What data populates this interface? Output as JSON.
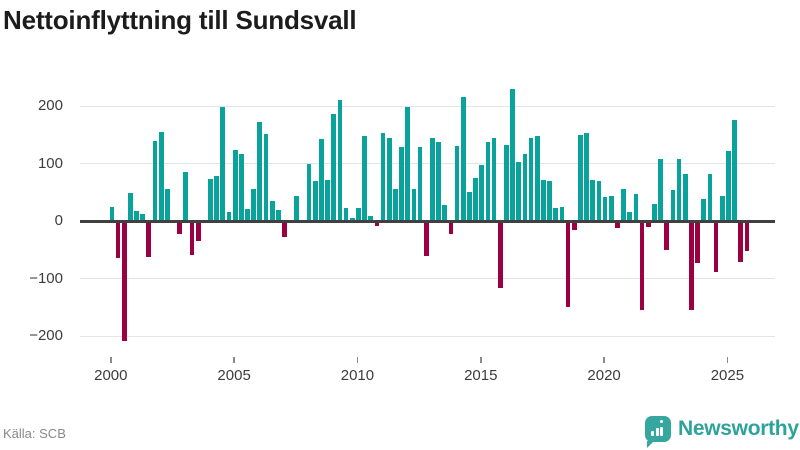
{
  "title": "Nettoinflyttning till Sundsvall",
  "source": "Källa: SCB",
  "branding": {
    "name": "Newsworthy"
  },
  "colors": {
    "positive_bar": "#0aa39b",
    "negative_bar": "#9b0141",
    "zero_axis": "#404040",
    "gridline": "#e4e4e4",
    "tick_label": "#3d3d3d",
    "source_text": "#8a8a8a",
    "title_text": "#1c1c1c",
    "brand_teal": "#2da39c"
  },
  "chart_data": {
    "type": "bar",
    "title": "Nettoinflyttning till Sundsvall",
    "frequency": "quarterly",
    "x_start": "2000 Q1",
    "x_tick_labels": [
      "2000",
      "2005",
      "2010",
      "2015",
      "2020",
      "2025"
    ],
    "y_tick_values": [
      200,
      100,
      0,
      -100,
      -200
    ],
    "y_tick_labels": [
      "200",
      "100",
      "0",
      "−100",
      "−200"
    ],
    "ylim": [
      -245,
      255
    ],
    "grid": "horizontal",
    "legend": "none",
    "values": [
      25,
      -64,
      -208,
      49,
      18,
      12,
      -62,
      140,
      154,
      56,
      0,
      -22,
      85,
      -59,
      -35,
      0,
      73,
      78,
      199,
      16,
      123,
      117,
      21,
      55,
      173,
      151,
      35,
      19,
      -28,
      0,
      44,
      0,
      99,
      69,
      143,
      72,
      186,
      210,
      22,
      5,
      22,
      147,
      8,
      -9,
      153,
      144,
      56,
      129,
      199,
      56,
      129,
      -61,
      145,
      137,
      28,
      -22,
      131,
      215,
      50,
      74,
      98,
      137,
      145,
      -117,
      132,
      230,
      103,
      117,
      145,
      148,
      72,
      70,
      22,
      25,
      -149,
      -15,
      149,
      153,
      72,
      70,
      41,
      43,
      -12,
      56,
      16,
      47,
      -155,
      -11,
      30,
      108,
      -51,
      54,
      108,
      82,
      -155,
      -73,
      38,
      82,
      -88,
      44,
      122,
      175,
      -72,
      -52
    ]
  }
}
